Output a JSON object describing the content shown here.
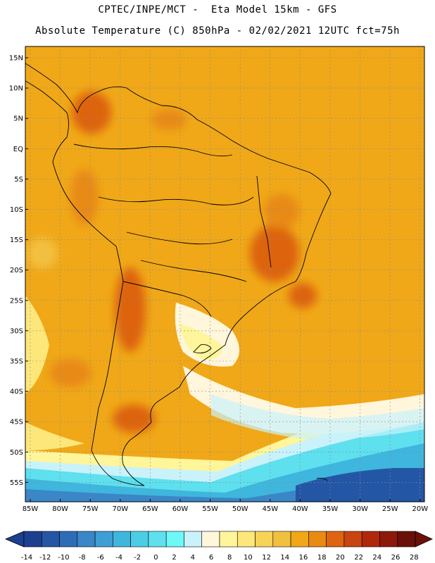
{
  "title": {
    "line1": "CPTEC/INPE/MCT -  Eta Model 15km - GFS",
    "line2": "Absolute Temperature (C) 850hPa - 02/02/2021 12UTC fct=75h"
  },
  "axes": {
    "lat_labels": [
      "15N",
      "10N",
      "5N",
      "EQ",
      "5S",
      "10S",
      "15S",
      "20S",
      "25S",
      "30S",
      "35S",
      "40S",
      "45S",
      "50S",
      "55S"
    ],
    "lon_labels": [
      "85W",
      "80W",
      "75W",
      "70W",
      "65W",
      "60W",
      "55W",
      "50W",
      "45W",
      "40W",
      "35W",
      "30W",
      "25W",
      "20W"
    ]
  },
  "colorbar": {
    "ticks": [
      "-14",
      "-12",
      "-10",
      "-8",
      "-6",
      "-4",
      "-2",
      "0",
      "2",
      "4",
      "6",
      "8",
      "10",
      "12",
      "14",
      "16",
      "18",
      "20",
      "22",
      "24",
      "26",
      "28"
    ],
    "colors": [
      "#1d3f8f",
      "#2456a6",
      "#2d6db8",
      "#3a86c6",
      "#3f9ed3",
      "#3fb6dd",
      "#4ccde6",
      "#5ee0ee",
      "#6ff8f8",
      "#c9f2fb",
      "#fff6dc",
      "#fff59a",
      "#fde77a",
      "#f8d358",
      "#f2c03f",
      "#f0a818",
      "#e88a14",
      "#dd6410",
      "#c84410",
      "#b0280c",
      "#8c1a0a",
      "#6b1008"
    ]
  }
}
